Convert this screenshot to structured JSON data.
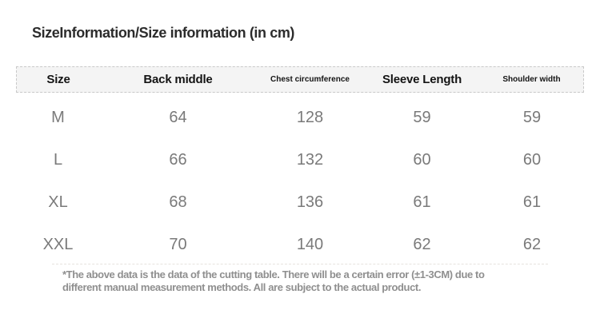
{
  "title": "SizeInformation/Size information (in cm)",
  "size_table": {
    "unit": "cm",
    "headers": {
      "size": "Size",
      "back_middle": "Back middle",
      "chest_circumference": "Chest circumference",
      "sleeve_length": "Sleeve Length",
      "shoulder_width": "Shoulder width"
    },
    "rows": [
      {
        "size": "M",
        "back_middle": "64",
        "chest_circumference": "128",
        "sleeve_length": "59",
        "shoulder_width": "59"
      },
      {
        "size": "L",
        "back_middle": "66",
        "chest_circumference": "132",
        "sleeve_length": "60",
        "shoulder_width": "60"
      },
      {
        "size": "XL",
        "back_middle": "68",
        "chest_circumference": "136",
        "sleeve_length": "61",
        "shoulder_width": "61"
      },
      {
        "size": "XXL",
        "back_middle": "70",
        "chest_circumference": "140",
        "sleeve_length": "62",
        "shoulder_width": "62"
      }
    ]
  },
  "footnote": {
    "line1": "*The above data is the data of the cutting table. There will be a certain error (±1-3CM) due to",
    "line2": "different manual measurement methods. All are subject to the actual product."
  },
  "colors": {
    "title_text": "#2c2c2c",
    "header_text": "#141414",
    "header_background": "#f4f4f4",
    "header_border": "#c9c9c9",
    "data_text": "#7a7a7a",
    "footnote_text": "#8f8f8f",
    "page_background": "#ffffff"
  }
}
